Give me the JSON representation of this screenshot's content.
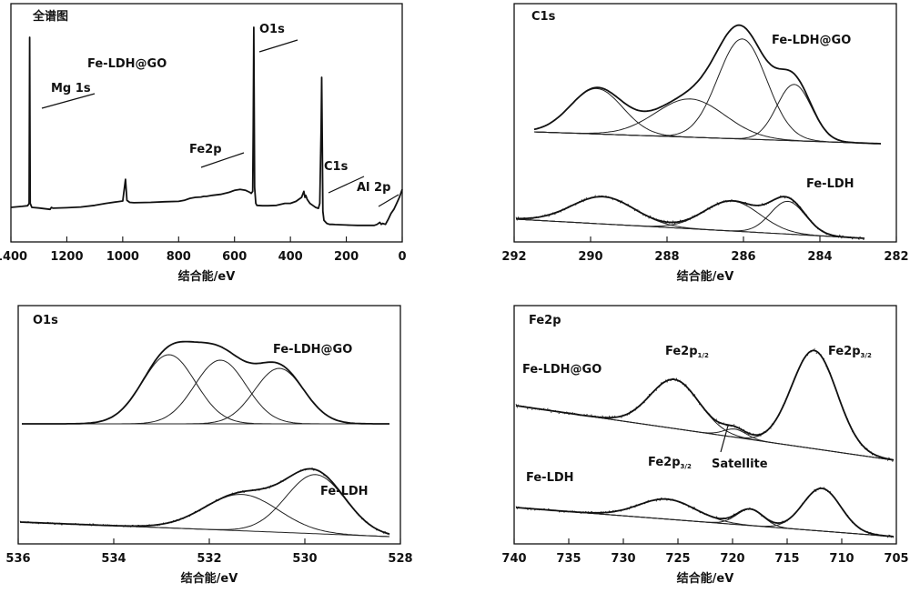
{
  "chart_data": [
    {
      "type": "line",
      "title": "全谱图",
      "xlabel": "结合能/eV",
      "xlim": [
        1400,
        0
      ],
      "xticks": [
        "1400",
        "1200",
        "1000",
        "800",
        "600",
        "400",
        "200",
        "0"
      ],
      "annotations": [
        "Fe-LDH@GO",
        "Mg 1s",
        "O1s",
        "Fe2p",
        "C1s",
        "Al 2p"
      ],
      "series": [
        {
          "x": [
            1400,
            1360,
            1340,
            1335,
            1333,
            1331,
            1325,
            1300,
            1260,
            1255,
            1250,
            1200,
            1150,
            1100,
            1060,
            1000,
            990,
            985,
            980,
            975,
            960,
            900,
            850,
            800,
            780,
            760,
            740,
            720,
            710,
            700,
            680,
            650,
            620,
            600,
            580,
            560,
            545,
            540,
            535,
            533,
            531,
            528,
            524,
            520,
            500,
            480,
            450,
            420,
            400,
            380,
            360,
            352,
            348,
            345,
            340,
            330,
            320,
            310,
            300,
            295,
            290,
            288,
            286,
            284,
            280,
            270,
            260,
            250,
            240,
            220,
            200,
            180,
            160,
            140,
            120,
            100,
            90,
            80,
            75,
            70,
            60,
            50,
            40,
            30,
            20,
            10,
            0
          ],
          "y": [
            10,
            10.5,
            10.8,
            12,
            95,
            12,
            10,
            9.7,
            9.0,
            10,
            9.6,
            9.8,
            10.2,
            11,
            12,
            13.2,
            24,
            13.5,
            13,
            12.5,
            12.3,
            12.5,
            12.8,
            13,
            13.5,
            14.5,
            15,
            15.2,
            15.5,
            15.5,
            16,
            16.5,
            17.5,
            18.5,
            19,
            18.5,
            17.5,
            17,
            18,
            50,
            100,
            20,
            12,
            11,
            10.8,
            10.8,
            11,
            12,
            12,
            13,
            15,
            18,
            15,
            16,
            14,
            12,
            11,
            10,
            9.5,
            12,
            50,
            75,
            40,
            8,
            3.5,
            2,
            1.5,
            1.5,
            1.4,
            1.3,
            1.2,
            1.1,
            1.0,
            1.0,
            1.0,
            1.0,
            1.5,
            2.5,
            1.5,
            2.0,
            1.5,
            4.0,
            7.0,
            9.0,
            12.0,
            15.0,
            19.0
          ]
        }
      ]
    },
    {
      "type": "line",
      "title": "C1s",
      "xlabel": "结合能/eV",
      "xlim": [
        292,
        282
      ],
      "xticks": [
        "292",
        "290",
        "288",
        "286",
        "284",
        "282"
      ],
      "annotations": [
        "Fe-LDH@GO",
        "Fe-LDH"
      ]
    },
    {
      "type": "line",
      "title": "O1s",
      "xlabel": "结合能/eV",
      "xlim": [
        536,
        528
      ],
      "xticks": [
        "536",
        "534",
        "532",
        "530",
        "528"
      ],
      "annotations": [
        "Fe-LDH@GO",
        "Fe-LDH"
      ]
    },
    {
      "type": "line",
      "title": "Fe2p",
      "xlabel": "结合能/eV",
      "xlim": [
        740,
        705
      ],
      "xticks": [
        "740",
        "735",
        "730",
        "725",
        "720",
        "715",
        "710",
        "705"
      ],
      "annotations": [
        "Fe-LDH@GO",
        "Fe-LDH",
        "Satellite"
      ],
      "peak_labels": [
        {
          "main": "Fe2p",
          "sub": "1/2"
        },
        {
          "main": "Fe2p",
          "sub": "3/2"
        },
        {
          "main": "Fe2p",
          "sub": "3/2"
        }
      ]
    }
  ]
}
